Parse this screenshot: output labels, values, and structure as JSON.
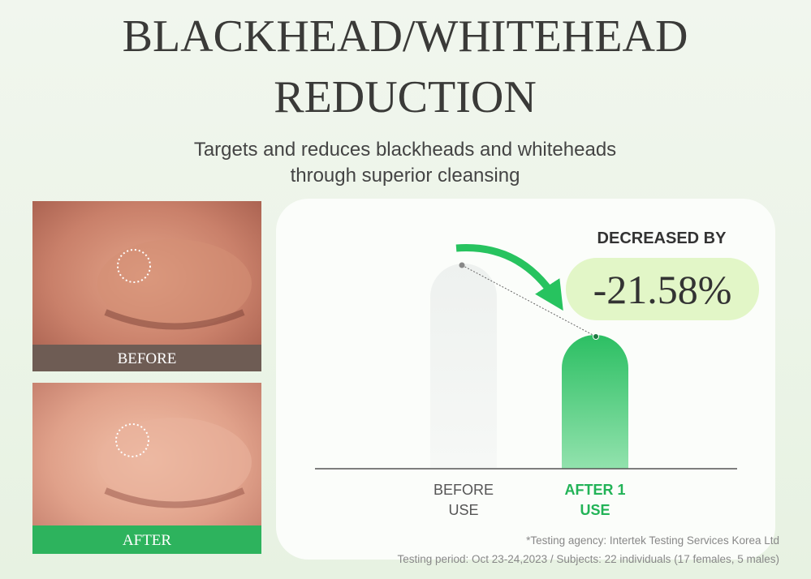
{
  "header": {
    "title": [
      "BLACKHEAD/WHITEHEAD",
      "REDUCTION"
    ],
    "subtitle": [
      "Targets and reduces blackheads and whiteheads",
      "through superior cleansing"
    ]
  },
  "photos": [
    {
      "label": "BEFORE"
    },
    {
      "label": "AFTER"
    }
  ],
  "result": {
    "heading": "DECREASED BY",
    "value": "-21.58%"
  },
  "bars": [
    {
      "label": [
        "BEFORE",
        "USE"
      ]
    },
    {
      "label": [
        "AFTER 1",
        "USE"
      ]
    }
  ],
  "notes": [
    "*Testing agency: Intertek Testing Services Korea Ltd",
    "Testing period: Oct 23-24,2023 / Subjects: 22 individuals (17 females, 5 males)"
  ]
}
